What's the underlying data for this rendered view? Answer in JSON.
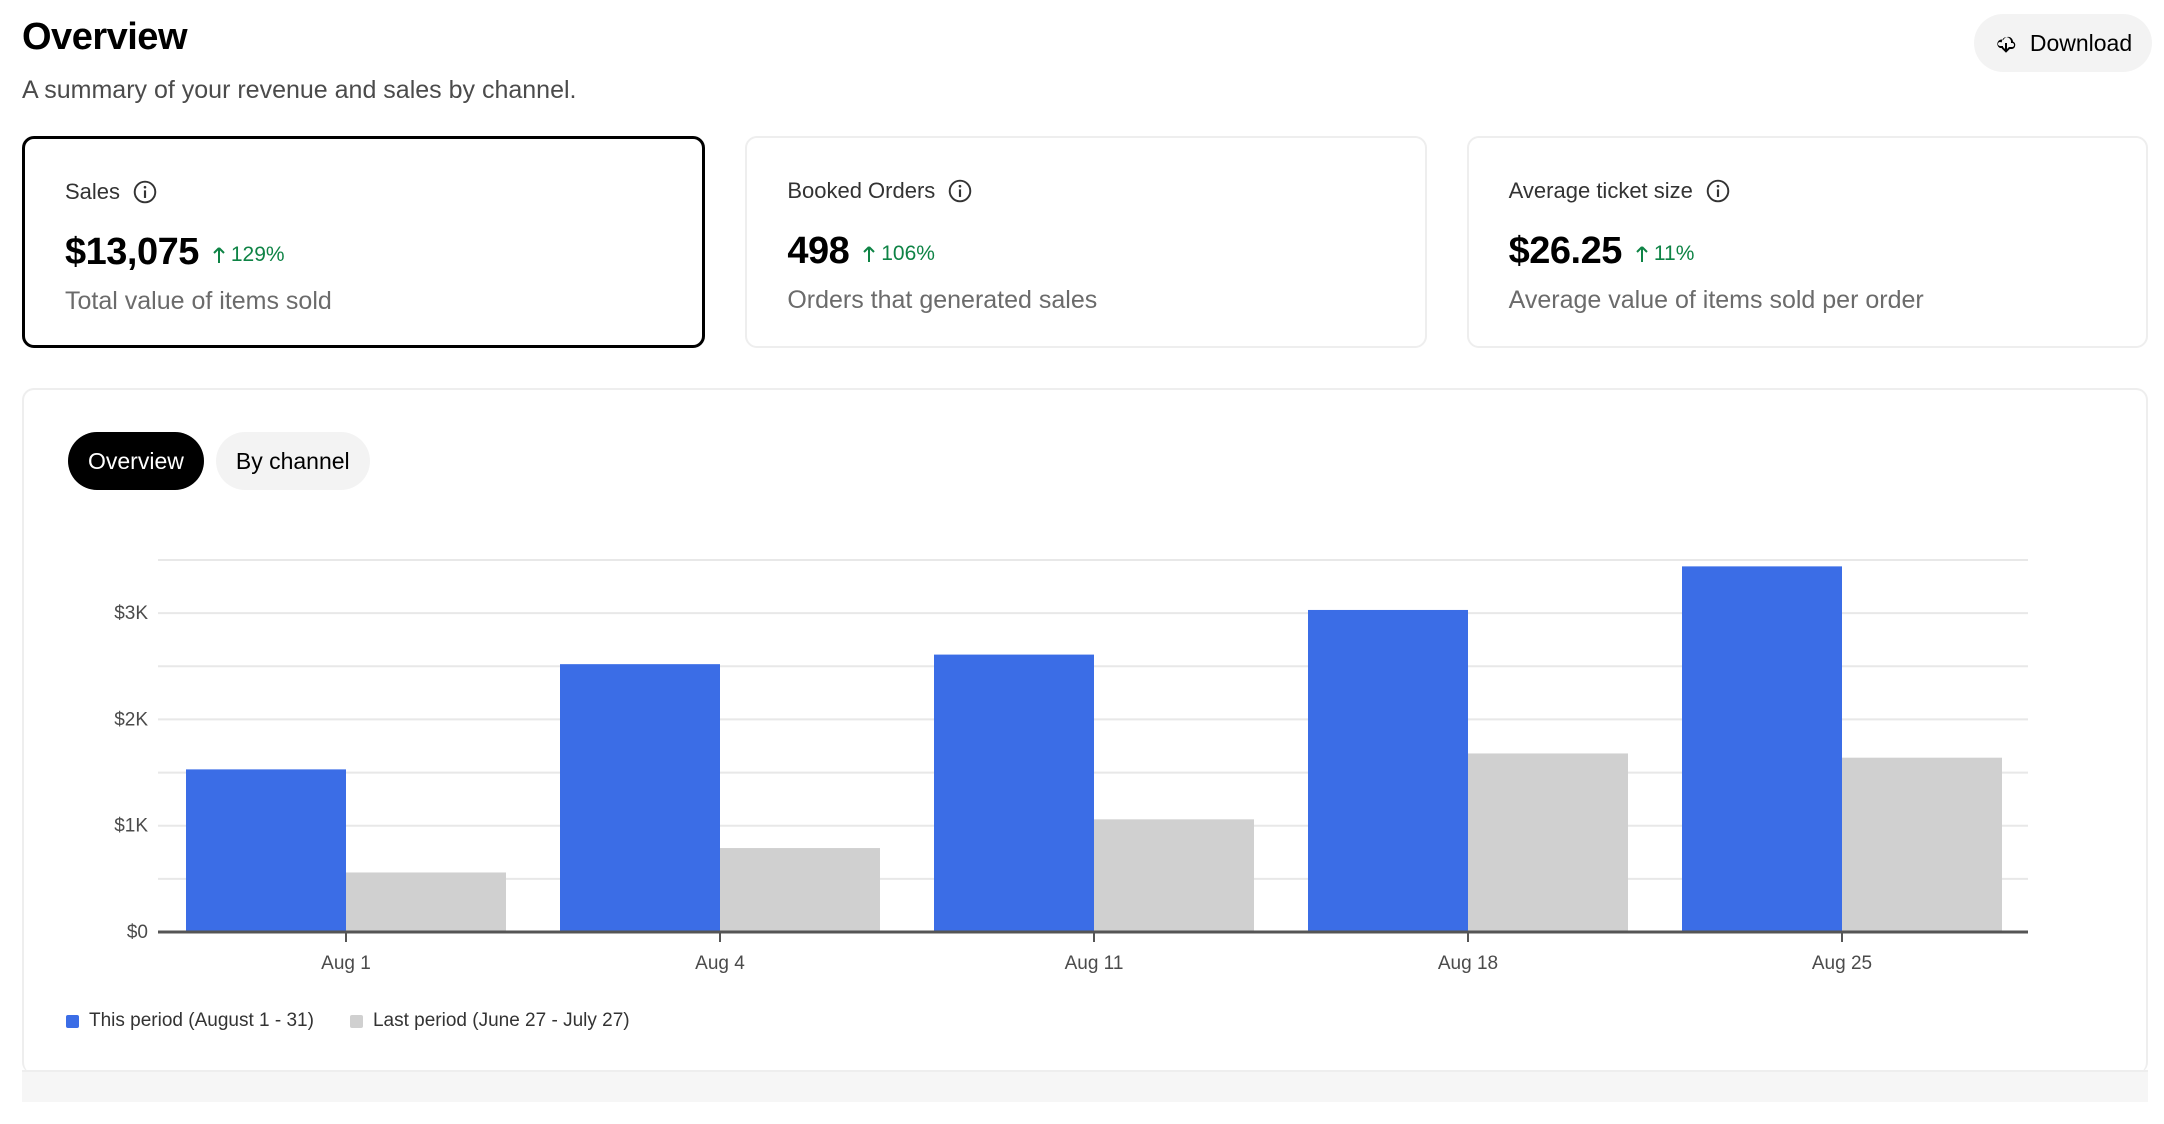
{
  "header": {
    "title": "Overview",
    "subtitle": "A summary of your revenue and sales by channel.",
    "download_label": "Download",
    "download_icon": "cloud-download-icon"
  },
  "cards": [
    {
      "label": "Sales",
      "value": "$13,075",
      "change": "129%",
      "description": "Total value of items sold",
      "selected": true
    },
    {
      "label": "Booked Orders",
      "value": "498",
      "change": "106%",
      "description": "Orders that generated sales",
      "selected": false
    },
    {
      "label": "Average ticket size",
      "value": "$26.25",
      "change": "11%",
      "description": "Average value of items sold per order",
      "selected": false
    }
  ],
  "tabs": [
    {
      "label": "Overview",
      "active": true
    },
    {
      "label": "By channel",
      "active": false
    }
  ],
  "colors": {
    "this_period": "#3b6de6",
    "last_period": "#d0d0d0",
    "positive": "#0e8345"
  },
  "chart_data": {
    "type": "bar",
    "categories": [
      "Aug 1",
      "Aug 4",
      "Aug 11",
      "Aug 18",
      "Aug 25"
    ],
    "series": [
      {
        "name": "This period (August 1 - 31)",
        "values": [
          1530,
          2520,
          2610,
          3030,
          3440
        ]
      },
      {
        "name": "Last period (June 27 - July 27)",
        "values": [
          560,
          790,
          1060,
          1680,
          1640
        ]
      }
    ],
    "yticks": [
      {
        "value": 0,
        "label": "$0"
      },
      {
        "value": 1000,
        "label": "$1K"
      },
      {
        "value": 2000,
        "label": "$2K"
      },
      {
        "value": 3000,
        "label": "$3K"
      }
    ],
    "ylim": [
      0,
      3500
    ],
    "grid": true,
    "legend": "bottom-left"
  }
}
